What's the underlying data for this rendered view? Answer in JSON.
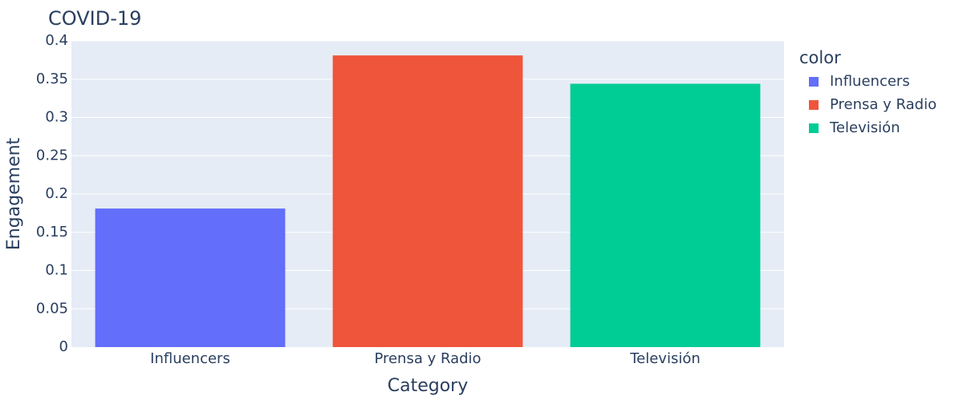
{
  "chart_data": {
    "type": "bar",
    "title": "COVID-19",
    "xlabel": "Category",
    "ylabel": "Engagement",
    "categories": [
      "Influencers",
      "Prensa y Radio",
      "Televisión"
    ],
    "values": [
      0.181,
      0.381,
      0.344
    ],
    "ylim": [
      0,
      0.4
    ],
    "yticks": [
      0,
      0.05,
      0.1,
      0.15,
      0.2,
      0.25,
      0.3,
      0.35,
      0.4
    ],
    "ytick_labels": [
      "0",
      "0.05",
      "0.1",
      "0.15",
      "0.2",
      "0.25",
      "0.3",
      "0.35",
      "0.4"
    ],
    "grid": true,
    "legend": {
      "title": "color",
      "placement": "right",
      "entries": [
        "Influencers",
        "Prensa y Radio",
        "Televisión"
      ]
    },
    "colors": [
      "#636efa",
      "#ef553b",
      "#00cc96"
    ],
    "plot_background": "#e5ecf6",
    "gridline_color": "#ffffff"
  }
}
